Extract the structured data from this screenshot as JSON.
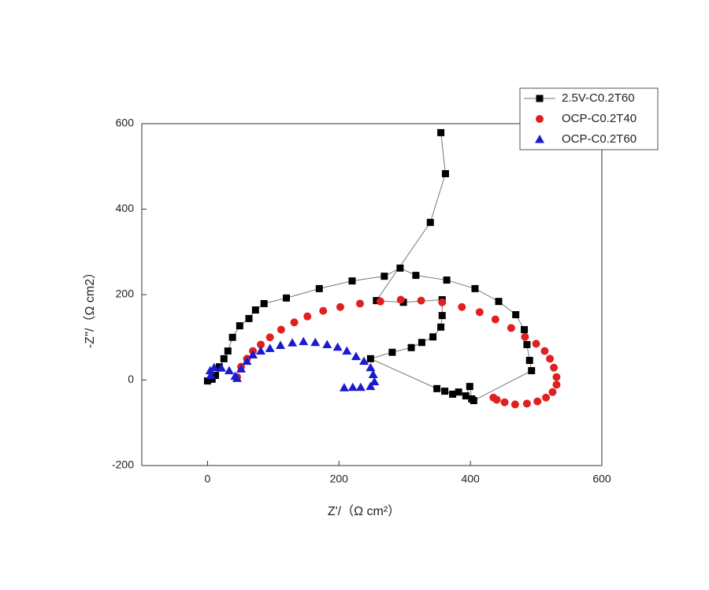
{
  "chart_data": {
    "type": "scatter",
    "x_label": "Z'/（Ω  cm²）",
    "y_label": "-Z''/（Ω  cm2）",
    "xlim": [
      -100,
      600
    ],
    "xticks": [
      0,
      200,
      400,
      600
    ],
    "ylim": [
      -200,
      600
    ],
    "yticks": [
      -200,
      0,
      200,
      400,
      600
    ],
    "legend_position": "top-right",
    "series": [
      {
        "name": "2.5V-C0.2T60",
        "color": "#000000",
        "marker": "square",
        "line": true,
        "x": [
          0,
          7,
          12,
          18,
          25,
          31,
          38,
          49,
          63,
          73,
          86,
          120,
          170,
          220,
          269,
          293,
          317,
          364,
          407,
          443,
          469,
          482,
          486,
          490,
          493,
          405,
          402,
          399,
          393,
          382,
          373,
          361,
          349,
          248,
          281,
          310,
          326,
          343,
          355,
          357,
          357,
          298,
          257,
          339,
          362,
          355
        ],
        "values": [
          -2,
          2,
          11,
          31,
          50,
          68,
          100,
          127,
          144,
          164,
          179,
          192,
          214,
          232,
          243,
          262,
          245,
          234,
          214,
          184,
          153,
          118,
          83,
          46,
          22,
          -48,
          -44,
          -15,
          -37,
          -28,
          -33,
          -26,
          -20,
          50,
          65,
          76,
          88,
          101,
          124,
          151,
          188,
          182,
          186,
          369,
          483,
          579
        ]
      },
      {
        "name": "OCP-C0.2T40",
        "color": "#e02020",
        "marker": "circle",
        "line": false,
        "x": [
          45,
          51,
          60,
          69,
          81,
          95,
          112,
          132,
          152,
          176,
          202,
          232,
          263,
          294,
          325,
          357,
          387,
          414,
          438,
          462,
          483,
          500,
          513,
          521,
          527,
          531,
          531,
          525,
          515,
          502,
          486,
          468,
          452,
          440,
          435
        ],
        "values": [
          7,
          31,
          50,
          68,
          83,
          100,
          118,
          135,
          149,
          162,
          171,
          179,
          184,
          188,
          186,
          182,
          171,
          159,
          142,
          122,
          101,
          85,
          68,
          50,
          29,
          7,
          -11,
          -28,
          -41,
          -50,
          -55,
          -57,
          -52,
          -46,
          -41
        ]
      },
      {
        "name": "OCP-C0.2T60",
        "color": "#1a1ad0",
        "marker": "triangle",
        "line": false,
        "x": [
          5,
          4,
          10,
          21,
          33,
          42,
          45,
          51,
          60,
          69,
          81,
          95,
          111,
          129,
          146,
          164,
          182,
          198,
          212,
          226,
          238,
          248,
          252,
          254,
          248,
          233,
          221,
          208
        ],
        "values": [
          11,
          22,
          29,
          28,
          22,
          9,
          4,
          26,
          44,
          59,
          68,
          74,
          81,
          87,
          90,
          88,
          83,
          77,
          68,
          55,
          44,
          29,
          13,
          -4,
          -15,
          -17,
          -17,
          -18
        ]
      }
    ]
  }
}
